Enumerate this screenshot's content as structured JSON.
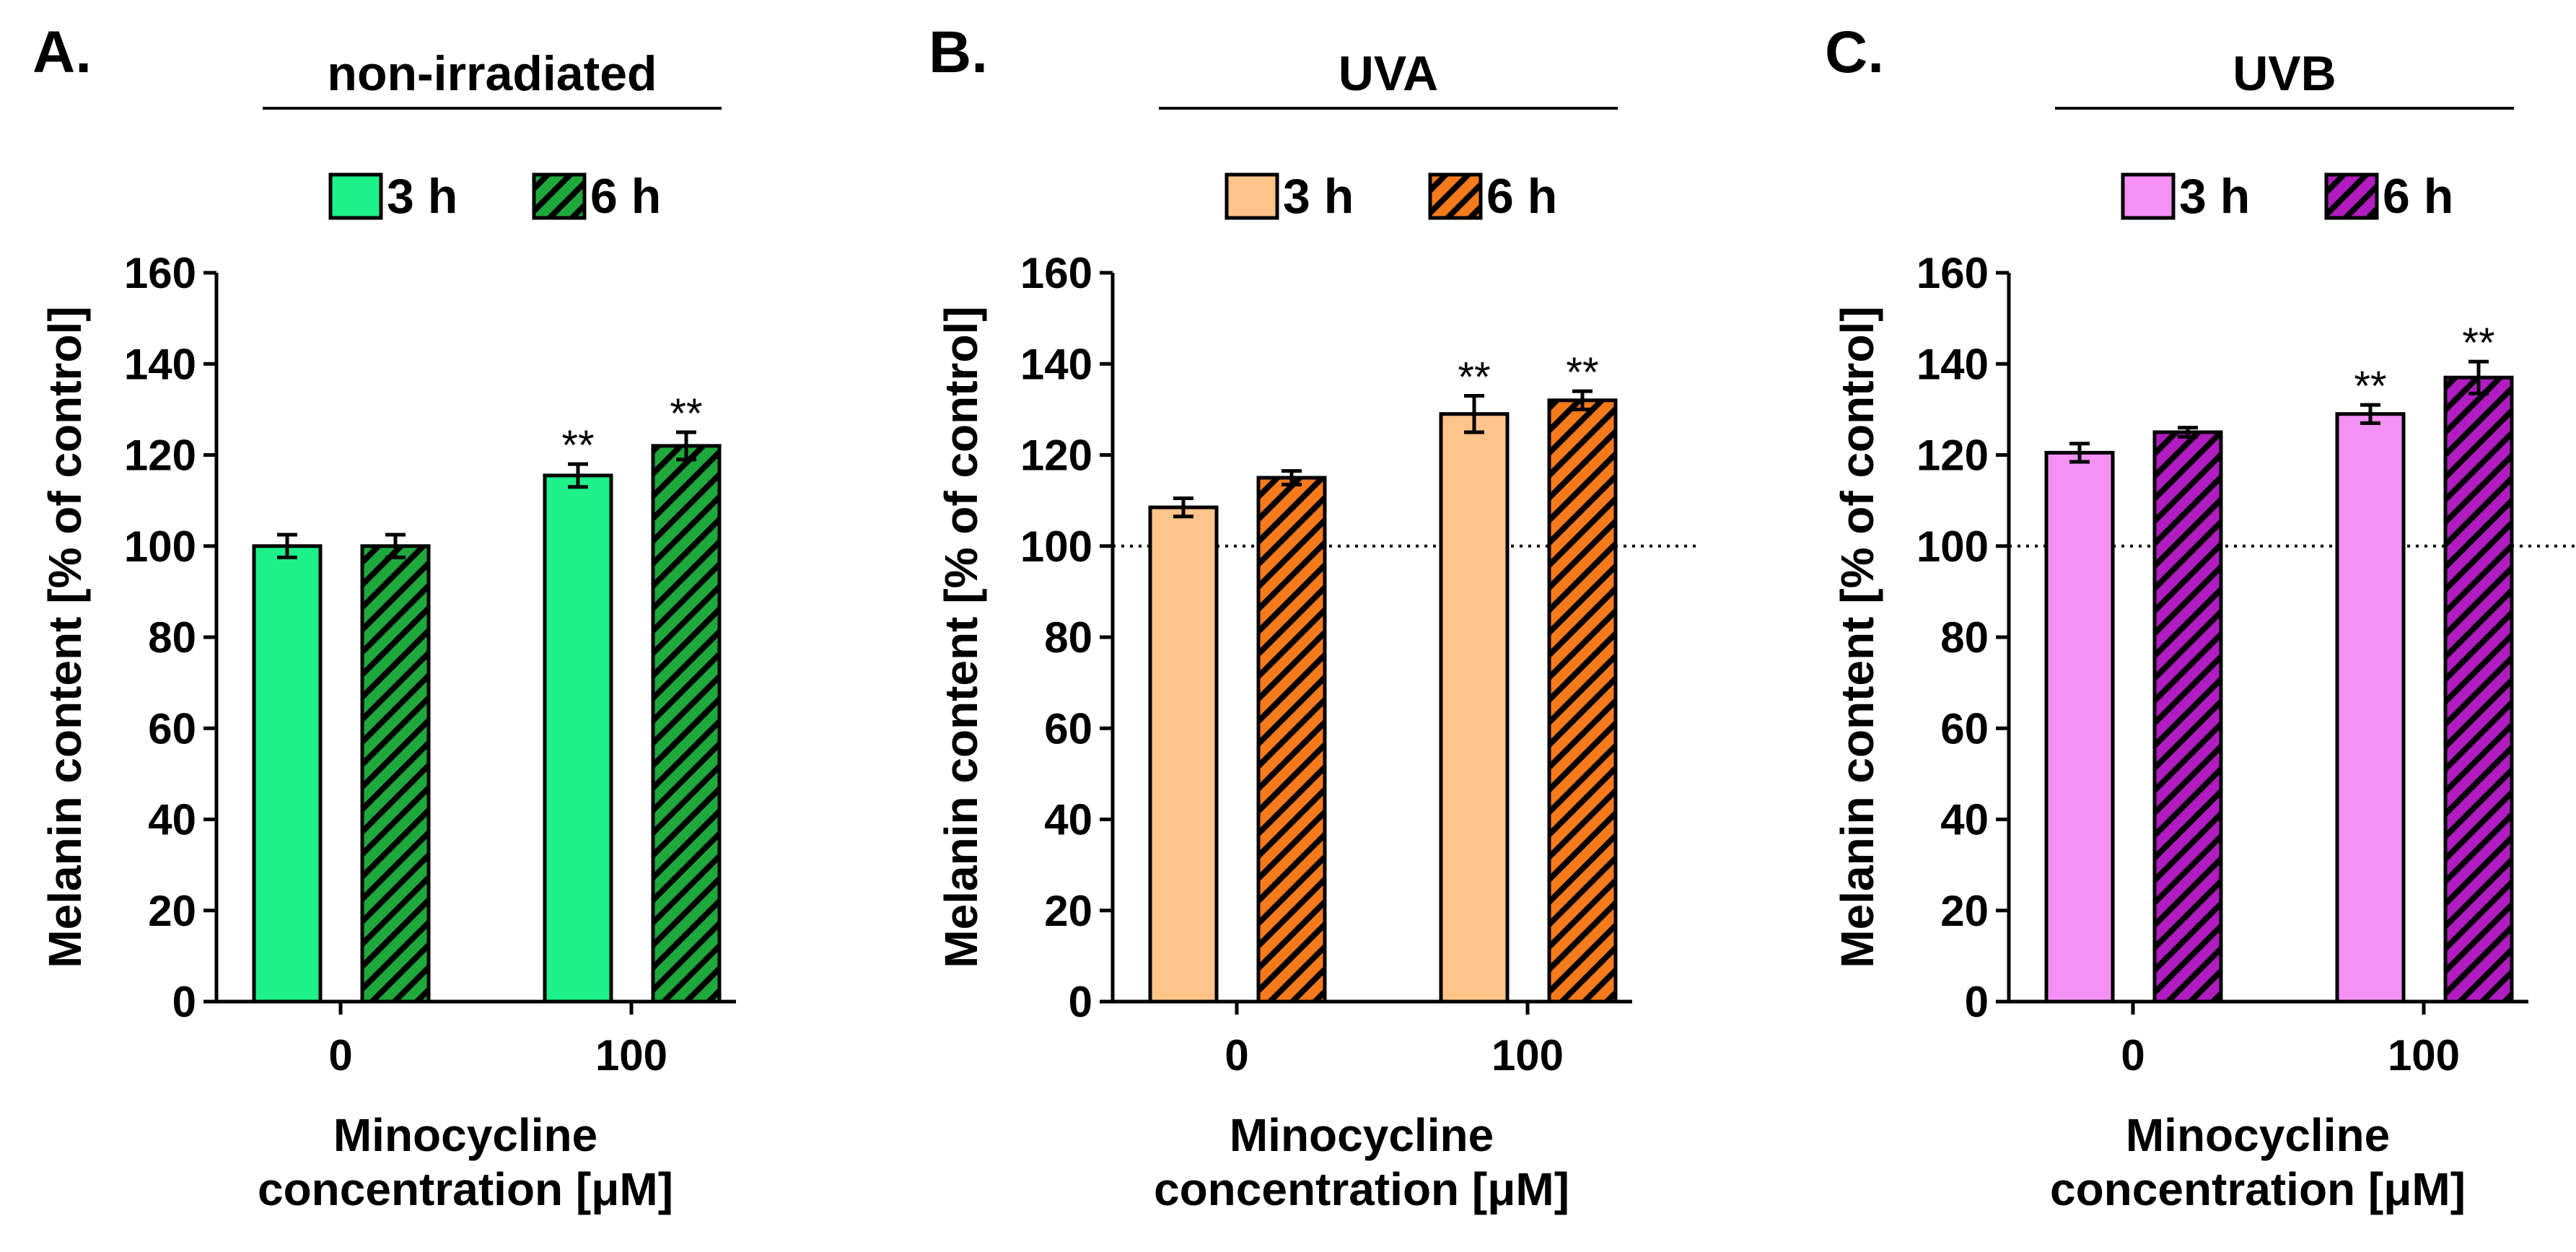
{
  "figure": {
    "panels": [
      {
        "letter": "A.",
        "condition": "non-irradiated"
      },
      {
        "letter": "B.",
        "condition": "UVA"
      },
      {
        "letter": "C.",
        "condition": "UVB"
      }
    ]
  },
  "chart_data": [
    {
      "type": "bar",
      "panel": "A.",
      "title": "non-irradiated",
      "categories": [
        "0",
        "100"
      ],
      "xlabel": [
        "Minocycline",
        "concentration [μM]"
      ],
      "ylabel": "Melanin content [% of control]",
      "ylim": [
        0,
        160
      ],
      "yticks": [
        0,
        20,
        40,
        60,
        80,
        100,
        120,
        140,
        160
      ],
      "reference_line": null,
      "legend_position": "top-center",
      "series": [
        {
          "name": "3 h",
          "pattern": "solid",
          "fill": "#1EF08A",
          "values": [
            100,
            115.5
          ],
          "errors": [
            2.5,
            2.5
          ],
          "significance": [
            "",
            "**"
          ]
        },
        {
          "name": "6 h",
          "pattern": "hatched",
          "fill": "#1FA83B",
          "values": [
            100,
            122
          ],
          "errors": [
            2.5,
            3
          ],
          "significance": [
            "",
            "**"
          ]
        }
      ]
    },
    {
      "type": "bar",
      "panel": "B.",
      "title": "UVA",
      "categories": [
        "0",
        "100"
      ],
      "xlabel": [
        "Minocycline",
        "concentration [μM]"
      ],
      "ylabel": "Melanin content [% of control]",
      "ylim": [
        0,
        160
      ],
      "yticks": [
        0,
        20,
        40,
        60,
        80,
        100,
        120,
        140,
        160
      ],
      "reference_line": 100,
      "legend_position": "top-center",
      "series": [
        {
          "name": "3 h",
          "pattern": "solid",
          "fill": "#FFC48A",
          "values": [
            108.5,
            129
          ],
          "errors": [
            2,
            4
          ],
          "significance": [
            "",
            "**"
          ]
        },
        {
          "name": "6 h",
          "pattern": "hatched",
          "fill": "#F57A1B",
          "values": [
            115,
            132
          ],
          "errors": [
            1.5,
            2
          ],
          "significance": [
            "",
            "**"
          ]
        }
      ]
    },
    {
      "type": "bar",
      "panel": "C.",
      "title": "UVB",
      "categories": [
        "0",
        "100"
      ],
      "xlabel": [
        "Minocycline",
        "concentration [μM]"
      ],
      "ylabel": "Melanin content [% of control]",
      "ylim": [
        0,
        160
      ],
      "yticks": [
        0,
        20,
        40,
        60,
        80,
        100,
        120,
        140,
        160
      ],
      "reference_line": 100,
      "legend_position": "top-center",
      "series": [
        {
          "name": "3 h",
          "pattern": "solid",
          "fill": "#F590F5",
          "values": [
            120.5,
            129
          ],
          "errors": [
            2,
            2
          ],
          "significance": [
            "",
            "**"
          ]
        },
        {
          "name": "6 h",
          "pattern": "hatched",
          "fill": "#B01CC0",
          "values": [
            125,
            137
          ],
          "errors": [
            1,
            3.5
          ],
          "significance": [
            "",
            "**"
          ]
        }
      ]
    }
  ]
}
